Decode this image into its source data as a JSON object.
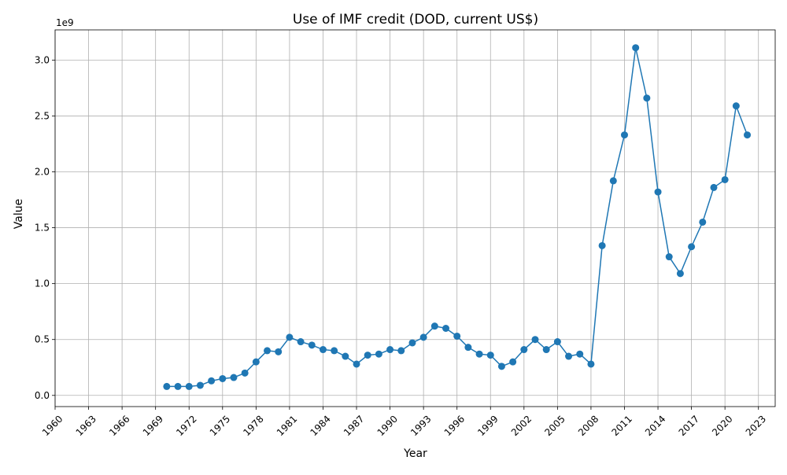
{
  "chart_data": {
    "type": "line",
    "title": "Use of IMF credit (DOD, current US$)",
    "xlabel": "Year",
    "ylabel": "Value",
    "y_offset_label": "1e9",
    "y_scale_factor": 1000000000,
    "xlim": [
      1960,
      2024.5
    ],
    "ylim": [
      -0.1,
      3.27
    ],
    "x_ticks": [
      1960,
      1963,
      1966,
      1969,
      1972,
      1975,
      1978,
      1981,
      1984,
      1987,
      1990,
      1993,
      1996,
      1999,
      2002,
      2005,
      2008,
      2011,
      2014,
      2017,
      2020,
      2023
    ],
    "y_ticks": [
      0.0,
      0.5,
      1.0,
      1.5,
      2.0,
      2.5,
      3.0
    ],
    "y_tick_labels": [
      "0.0",
      "0.5",
      "1.0",
      "1.5",
      "2.0",
      "2.5",
      "3.0"
    ],
    "grid": true,
    "line_color": "#1f77b4",
    "marker": "circle",
    "series": [
      {
        "x": [
          1970,
          1971,
          1972,
          1973,
          1974,
          1975,
          1976,
          1977,
          1978,
          1979,
          1980,
          1981,
          1982,
          1983,
          1984,
          1985,
          1986,
          1987,
          1988,
          1989,
          1990,
          1991,
          1992,
          1993,
          1994,
          1995,
          1996,
          1997,
          1998,
          1999,
          2000,
          2001,
          2002,
          2003,
          2004,
          2005,
          2006,
          2007,
          2008,
          2009,
          2010,
          2011,
          2012,
          2013,
          2014,
          2015,
          2016,
          2017,
          2018,
          2019,
          2020,
          2021,
          2022
        ],
        "y": [
          0.08,
          0.08,
          0.08,
          0.09,
          0.13,
          0.15,
          0.16,
          0.2,
          0.3,
          0.4,
          0.39,
          0.52,
          0.48,
          0.45,
          0.41,
          0.4,
          0.35,
          0.28,
          0.36,
          0.37,
          0.41,
          0.4,
          0.47,
          0.52,
          0.62,
          0.6,
          0.53,
          0.43,
          0.37,
          0.36,
          0.26,
          0.3,
          0.41,
          0.5,
          0.41,
          0.48,
          0.35,
          0.37,
          0.28,
          1.34,
          1.92,
          2.33,
          3.11,
          2.66,
          1.82,
          1.24,
          1.09,
          1.33,
          1.55,
          1.86,
          1.93,
          2.59,
          2.33
        ]
      }
    ]
  }
}
